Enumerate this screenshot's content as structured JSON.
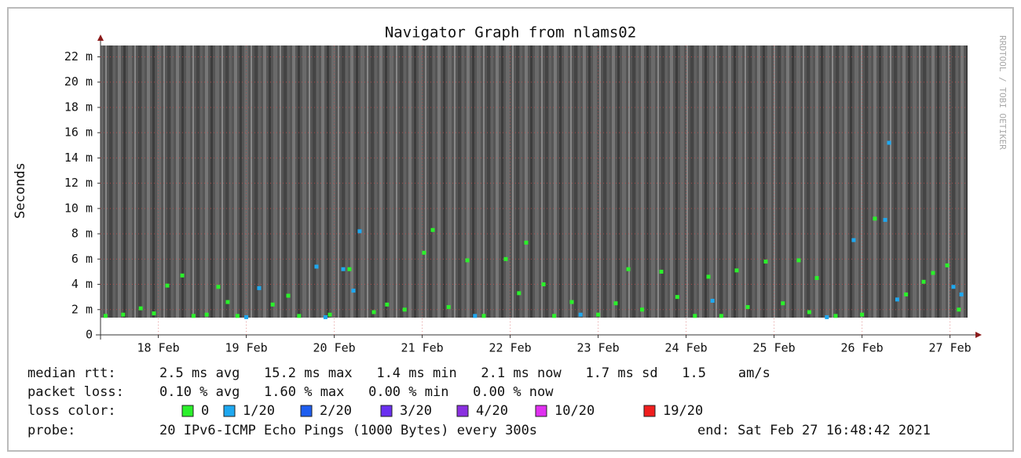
{
  "chart_data": {
    "type": "smokeping",
    "title": "Navigator Graph from nlams02",
    "y_label": "Seconds",
    "side_text": "RRDTOOL / TOBI OETIKER",
    "ylim": [
      0,
      22.9
    ],
    "yticks": [
      0,
      {
        "value": 2,
        "label": "2 m"
      },
      {
        "value": 4,
        "label": "4 m"
      },
      {
        "value": 6,
        "label": "6 m"
      },
      {
        "value": 8,
        "label": "8 m"
      },
      {
        "value": 10,
        "label": "10 m"
      },
      {
        "value": 12,
        "label": "12 m"
      },
      {
        "value": 14,
        "label": "14 m"
      },
      {
        "value": 16,
        "label": "16 m"
      },
      {
        "value": 18,
        "label": "18 m"
      },
      {
        "value": 20,
        "label": "20 m"
      },
      {
        "value": 22,
        "label": "22 m"
      }
    ],
    "xlim": [
      17.843,
      27.7
    ],
    "xticks": [
      {
        "value": 18.5,
        "label": "18 Feb"
      },
      {
        "value": 19.5,
        "label": "19 Feb"
      },
      {
        "value": 20.5,
        "label": "20 Feb"
      },
      {
        "value": 21.5,
        "label": "21 Feb"
      },
      {
        "value": 22.5,
        "label": "22 Feb"
      },
      {
        "value": 23.5,
        "label": "23 Feb"
      },
      {
        "value": 24.5,
        "label": "24 Feb"
      },
      {
        "value": 25.5,
        "label": "25 Feb"
      },
      {
        "value": 26.5,
        "label": "26 Feb"
      },
      {
        "value": 27.5,
        "label": "27 Feb"
      }
    ],
    "grid": true,
    "stats": [
      {
        "label": "median rtt:",
        "text": "2.5 ms avg   15.2 ms max   1.4 ms min   2.1 ms now   1.7 ms sd   1.5    am/s"
      },
      {
        "label": "packet loss:",
        "text": "0.10 % avg   1.60 % max   0.00 % min   0.00 % now"
      }
    ],
    "legend_label": "loss color:",
    "probe_label": "probe:",
    "probe": "20 IPv6-ICMP Echo Pings (1000 Bytes) every 300s",
    "end": "end: Sat Feb 27 16:48:42 2021",
    "series": [
      {
        "name": "0",
        "color": "#2bf02b",
        "x": [
          17.9,
          18.1,
          18.3,
          18.45,
          18.602,
          18.772,
          18.9,
          19.05,
          19.182,
          19.289,
          19.4,
          19.8,
          19.977,
          20.1,
          20.45,
          20.673,
          20.95,
          21.1,
          21.3,
          21.521,
          21.62,
          21.8,
          22.013,
          22.2,
          22.45,
          22.6,
          22.682,
          22.879,
          23.0,
          23.2,
          23.5,
          23.7,
          23.843,
          24.0,
          24.218,
          24.4,
          24.6,
          24.754,
          24.9,
          25.075,
          25.2,
          25.405,
          25.6,
          25.78,
          25.9,
          25.986,
          26.2,
          26.5,
          26.646,
          27.0,
          27.2,
          27.307,
          27.468,
          27.6
        ],
        "values": [
          1.5,
          1.6,
          2.1,
          1.7,
          3.9,
          4.7,
          1.5,
          1.6,
          3.8,
          2.6,
          1.5,
          2.4,
          3.1,
          1.5,
          1.6,
          5.2,
          1.8,
          2.4,
          2.0,
          6.5,
          8.3,
          2.2,
          5.9,
          1.5,
          6.0,
          3.3,
          7.3,
          4.0,
          1.5,
          2.6,
          1.6,
          2.5,
          5.2,
          2.0,
          5.0,
          3.0,
          1.5,
          4.6,
          1.5,
          5.1,
          2.2,
          5.8,
          2.5,
          5.9,
          1.8,
          4.5,
          1.5,
          1.6,
          9.2,
          3.2,
          4.2,
          4.9,
          5.5,
          2.0
        ]
      },
      {
        "name": "1/20",
        "color": "#1ea8f0",
        "x": [
          19.5,
          19.646,
          20.298,
          20.4,
          20.602,
          20.718,
          20.789,
          22.1,
          23.3,
          24.8,
          26.1,
          26.405,
          26.763,
          26.807,
          26.9,
          27.539,
          27.629
        ],
        "values": [
          1.4,
          3.7,
          5.4,
          1.4,
          5.2,
          3.5,
          8.2,
          1.5,
          1.6,
          2.7,
          1.4,
          7.5,
          9.1,
          15.2,
          2.8,
          3.8,
          3.2
        ]
      },
      {
        "name": "2/20",
        "color": "#1e5ef0",
        "x": [],
        "values": []
      },
      {
        "name": "3/20",
        "color": "#6a30f0",
        "x": [],
        "values": []
      },
      {
        "name": "4/20",
        "color": "#8a30e0",
        "x": [],
        "values": []
      },
      {
        "name": "10/20",
        "color": "#e030f0",
        "x": [],
        "values": []
      },
      {
        "name": "19/20",
        "color": "#f01e1e",
        "x": [],
        "values": []
      }
    ]
  }
}
